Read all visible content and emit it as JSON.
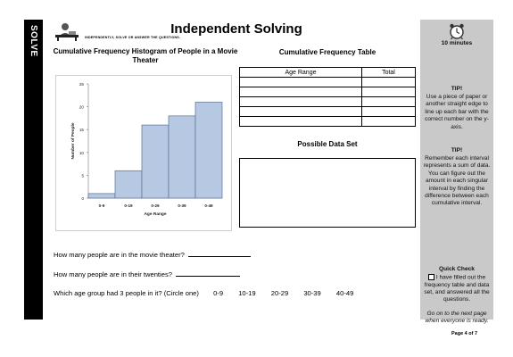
{
  "side_label": "SOLVE",
  "header": {
    "title": "Independent Solving",
    "subtitle": "INDEPENDENTLY, SOLVE OR ANSWER THE QUESTIONS."
  },
  "chart_data": {
    "type": "bar",
    "title": "Cumulative Frequency Histogram of People in a Movie Theater",
    "categories": [
      "0-9",
      "0-19",
      "0-29",
      "0-39",
      "0-49"
    ],
    "values": [
      1,
      6,
      16,
      18,
      21
    ],
    "xlabel": "Age Range",
    "ylabel": "Number of People",
    "ylim": [
      0,
      25
    ],
    "yticks": [
      0,
      5,
      10,
      15,
      20,
      25
    ],
    "grid": false,
    "bar_color": "#b7c9e2",
    "bar_edge_color": "#5a6f96"
  },
  "table": {
    "title": "Cumulative Frequency Table",
    "headers": [
      "Age Range",
      "Total"
    ],
    "empty_rows": 5
  },
  "data_set": {
    "title": "Possible Data Set"
  },
  "questions": {
    "q1": "How many people are in the movie theater?",
    "q2": "How many people are in their twenties?",
    "q3": "Which age group had 3 people in it? (Circle one)",
    "options": [
      "0-9",
      "10-19",
      "20-29",
      "30-39",
      "40-49"
    ]
  },
  "panel": {
    "time": "10 minutes",
    "tip1_heading": "TIP!",
    "tip1": "Use a piece of paper or another straight edge to line up each bar with the correct number on the y-axis.",
    "tip2_heading": "TIP!",
    "tip2": "Remember each interval represents a sum of data. You can figure out the amount in each singular interval by finding the difference between each cumulative interval.",
    "quick_check_heading": "Quick Check",
    "quick_check": "I have filled out the frequency table and data set, and answered all the questions.",
    "footer": "Go on to the next page when everyone is ready."
  },
  "page_number": "Page 4 of 7"
}
